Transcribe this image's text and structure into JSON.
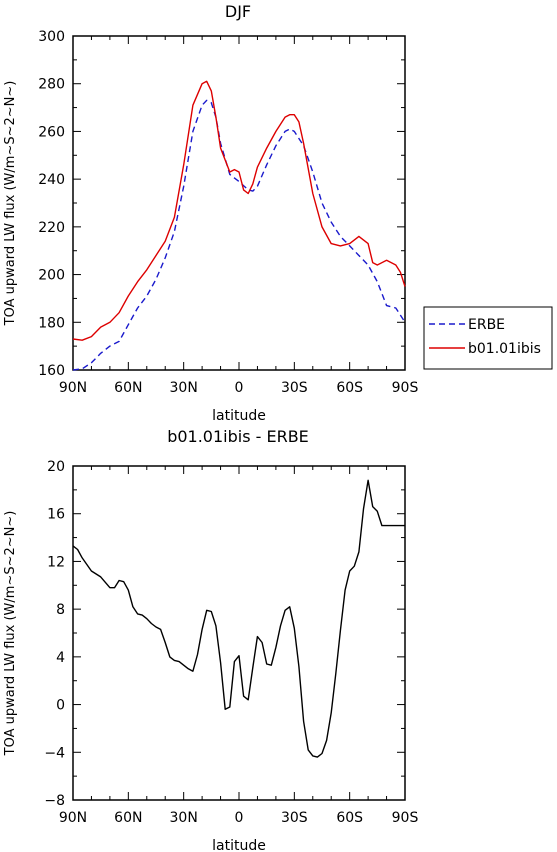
{
  "chart_data": [
    {
      "type": "line",
      "title": "DJF",
      "xlabel": "latitude",
      "ylabel": "TOA upward LW flux (W/m~S~2~N~)",
      "xlim": [
        90,
        -90
      ],
      "ylim": [
        160,
        300
      ],
      "x_ticks": [
        90,
        60,
        30,
        0,
        -30,
        -60,
        -90
      ],
      "x_tick_labels": [
        "90N",
        "60N",
        "30N",
        "0",
        "30S",
        "60S",
        "90S"
      ],
      "y_ticks": [
        160,
        180,
        200,
        220,
        240,
        260,
        280,
        300
      ],
      "y_tick_labels": [
        "160",
        "180",
        "200",
        "220",
        "240",
        "260",
        "280",
        "300"
      ],
      "legend": {
        "placement": "right"
      },
      "series": [
        {
          "name": "ERBE",
          "color": "#1a1acc",
          "dash": "dashed",
          "x": [
            90,
            85,
            80,
            75,
            70,
            65,
            60,
            55,
            50,
            45,
            40,
            35,
            30,
            25,
            20,
            17.5,
            15,
            12.5,
            10,
            5,
            0,
            -5,
            -7.5,
            -10,
            -15,
            -20,
            -25,
            -27.5,
            -30,
            -35,
            -40,
            -45,
            -50,
            -55,
            -60,
            -65,
            -70,
            -75,
            -80,
            -85,
            -87.5,
            -90
          ],
          "values": [
            160,
            160.5,
            163,
            167,
            170,
            172,
            179,
            186,
            191,
            198,
            207,
            218,
            237,
            260,
            271,
            273,
            272,
            266,
            255,
            242,
            239,
            235.5,
            235,
            237,
            246,
            254,
            260,
            261,
            260,
            254,
            243,
            230,
            222,
            216,
            212,
            208,
            204,
            197,
            187,
            186,
            183,
            180
          ]
        },
        {
          "name": "b01.01ibis",
          "color": "#dd0000",
          "dash": "solid",
          "x": [
            90,
            85,
            80,
            75,
            70,
            65,
            60,
            55,
            50,
            45,
            40,
            35,
            30,
            25,
            20,
            17.5,
            15,
            12.5,
            10,
            5,
            2.5,
            0,
            -2.5,
            -5,
            -7.5,
            -10,
            -15,
            -20,
            -25,
            -27.5,
            -30,
            -32.5,
            -35,
            -40,
            -45,
            -50,
            -55,
            -60,
            -65,
            -70,
            -72.5,
            -75,
            -80,
            -82.5,
            -85,
            -87.5,
            -90
          ],
          "values": [
            173,
            172.5,
            174,
            178,
            180,
            184,
            191,
            197,
            202,
            208,
            214,
            224,
            246,
            271,
            280,
            281,
            277,
            266,
            253,
            243,
            244,
            243,
            235.5,
            234,
            238,
            245,
            253,
            260,
            266,
            267,
            267,
            264,
            255,
            234,
            220,
            213,
            212,
            213,
            216,
            213,
            205,
            204,
            206,
            205,
            204,
            201,
            195
          ]
        }
      ]
    },
    {
      "type": "line",
      "title": "b01.01ibis - ERBE",
      "xlabel": "latitude",
      "ylabel": "TOA upward LW flux (W/m~S~2~N~)",
      "xlim": [
        90,
        -90
      ],
      "ylim": [
        -8,
        20
      ],
      "x_ticks": [
        90,
        60,
        30,
        0,
        -30,
        -60,
        -90
      ],
      "x_tick_labels": [
        "90N",
        "60N",
        "30N",
        "0",
        "30S",
        "60S",
        "90S"
      ],
      "y_ticks": [
        -8,
        -4,
        0,
        4,
        8,
        12,
        16,
        20
      ],
      "y_tick_labels": [
        "−8",
        "−4",
        "0",
        "4",
        "8",
        "12",
        "16",
        "20"
      ],
      "series": [
        {
          "color": "#000000",
          "dash": "solid",
          "x": [
            90,
            87.5,
            85,
            80,
            75,
            70,
            67.5,
            65,
            62.5,
            60,
            57.5,
            55,
            52.5,
            50,
            47.5,
            45,
            42.5,
            40,
            37.5,
            35,
            32.5,
            30,
            27.5,
            25,
            22.5,
            20,
            17.5,
            15,
            12.5,
            10,
            7.5,
            5,
            2.5,
            0,
            -2.5,
            -5,
            -7.5,
            -10,
            -12.5,
            -15,
            -17.5,
            -20,
            -22.5,
            -25,
            -27.5,
            -30,
            -32.5,
            -35,
            -37.5,
            -40,
            -42.5,
            -45,
            -47.5,
            -50,
            -52.5,
            -55,
            -57.5,
            -60,
            -62.5,
            -65,
            -67.5,
            -70,
            -72.5,
            -75,
            -77.5,
            -80,
            -82.5,
            -85,
            -87.5,
            -90
          ],
          "values": [
            13.3,
            13,
            12.3,
            11.2,
            10.7,
            9.8,
            9.8,
            10.4,
            10.3,
            9.6,
            8.2,
            7.6,
            7.5,
            7.2,
            6.8,
            6.5,
            6.3,
            5.2,
            4.0,
            3.7,
            3.6,
            3.3,
            3.0,
            2.8,
            4.2,
            6.3,
            7.9,
            7.8,
            6.6,
            3.5,
            -0.4,
            -0.2,
            3.6,
            4.1,
            0.7,
            0.4,
            3.1,
            5.7,
            5.2,
            3.4,
            3.3,
            4.8,
            6.6,
            7.9,
            8.2,
            6.4,
            3.2,
            -1.4,
            -3.8,
            -4.3,
            -4.4,
            -4.1,
            -3.0,
            -0.7,
            2.6,
            6.2,
            9.6,
            11.2,
            11.6,
            12.8,
            16.4,
            18.8,
            16.6,
            16.2,
            15.0,
            15.0,
            15.0,
            15.0,
            15.0,
            15.0
          ]
        }
      ]
    }
  ]
}
